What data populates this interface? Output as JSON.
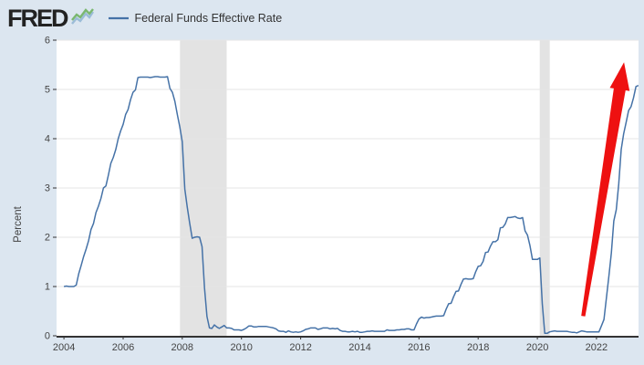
{
  "header": {
    "logo_text": "FRED",
    "legend": {
      "series_label": "Federal Funds Effective Rate"
    }
  },
  "chart_data": {
    "type": "line",
    "title": "Federal Funds Effective Rate",
    "ylabel": "Percent",
    "xlabel": "",
    "legend_position": "top",
    "grid": "horizontal",
    "xlim": [
      2003.75,
      2023.42
    ],
    "ylim": [
      0,
      6
    ],
    "yticks": [
      0,
      1,
      2,
      3,
      4,
      5,
      6
    ],
    "xticks": [
      2004,
      2006,
      2008,
      2010,
      2012,
      2014,
      2016,
      2018,
      2020,
      2022
    ],
    "recession_bands": [
      [
        2007.92,
        2009.5
      ],
      [
        2020.08,
        2020.42
      ]
    ],
    "series": [
      {
        "name": "Federal Funds Effective Rate",
        "color": "#4572a7",
        "start_year": 2004,
        "frequency": "monthly",
        "values": [
          1.0,
          1.01,
          1.0,
          1.0,
          1.0,
          1.03,
          1.26,
          1.43,
          1.61,
          1.76,
          1.93,
          2.16,
          2.28,
          2.5,
          2.63,
          2.79,
          3.0,
          3.04,
          3.26,
          3.5,
          3.62,
          3.78,
          4.0,
          4.16,
          4.29,
          4.49,
          4.59,
          4.79,
          4.94,
          4.99,
          5.24,
          5.25,
          5.25,
          5.25,
          5.25,
          5.24,
          5.25,
          5.26,
          5.26,
          5.25,
          5.25,
          5.25,
          5.26,
          5.02,
          4.94,
          4.76,
          4.49,
          4.24,
          3.94,
          2.98,
          2.61,
          2.28,
          1.98,
          2.0,
          2.01,
          2.0,
          1.81,
          0.97,
          0.39,
          0.16,
          0.15,
          0.22,
          0.18,
          0.15,
          0.18,
          0.21,
          0.16,
          0.16,
          0.15,
          0.12,
          0.12,
          0.12,
          0.11,
          0.13,
          0.16,
          0.2,
          0.2,
          0.18,
          0.18,
          0.19,
          0.19,
          0.19,
          0.19,
          0.18,
          0.17,
          0.16,
          0.14,
          0.1,
          0.09,
          0.09,
          0.07,
          0.1,
          0.08,
          0.07,
          0.08,
          0.07,
          0.08,
          0.1,
          0.13,
          0.14,
          0.16,
          0.16,
          0.16,
          0.13,
          0.14,
          0.16,
          0.16,
          0.16,
          0.14,
          0.15,
          0.14,
          0.15,
          0.11,
          0.09,
          0.09,
          0.08,
          0.08,
          0.09,
          0.08,
          0.09,
          0.07,
          0.07,
          0.08,
          0.09,
          0.09,
          0.1,
          0.09,
          0.09,
          0.09,
          0.09,
          0.09,
          0.12,
          0.11,
          0.11,
          0.11,
          0.12,
          0.12,
          0.13,
          0.13,
          0.14,
          0.14,
          0.12,
          0.12,
          0.24,
          0.34,
          0.38,
          0.36,
          0.37,
          0.37,
          0.38,
          0.39,
          0.4,
          0.4,
          0.4,
          0.41,
          0.54,
          0.65,
          0.66,
          0.79,
          0.9,
          0.91,
          1.04,
          1.15,
          1.16,
          1.15,
          1.15,
          1.16,
          1.3,
          1.41,
          1.42,
          1.51,
          1.69,
          1.7,
          1.82,
          1.91,
          1.91,
          1.95,
          2.19,
          2.2,
          2.27,
          2.4,
          2.4,
          2.41,
          2.42,
          2.39,
          2.38,
          2.4,
          2.13,
          2.04,
          1.83,
          1.55,
          1.55,
          1.55,
          1.58,
          0.65,
          0.05,
          0.05,
          0.08,
          0.09,
          0.1,
          0.09,
          0.09,
          0.09,
          0.09,
          0.09,
          0.08,
          0.07,
          0.07,
          0.06,
          0.08,
          0.1,
          0.09,
          0.08,
          0.08,
          0.08,
          0.08,
          0.08,
          0.08,
          0.2,
          0.33,
          0.77,
          1.21,
          1.68,
          2.33,
          2.56,
          3.08,
          3.78,
          4.1,
          4.33,
          4.57,
          4.65,
          4.83,
          5.06,
          5.08
        ]
      }
    ],
    "annotation": {
      "type": "arrow",
      "color": "#ee1111",
      "from": [
        2021.55,
        0.4
      ],
      "to": [
        2022.93,
        5.55
      ]
    }
  },
  "colors": {
    "background": "#dce6f0",
    "plot_background": "#ffffff",
    "grid": "#e6e6e6",
    "recession_band": "#e3e3e3",
    "axis": "#333333",
    "tick_label": "#444444",
    "legend_text": "#333333",
    "series_line": "#4572a7",
    "arrow": "#ee1111"
  }
}
